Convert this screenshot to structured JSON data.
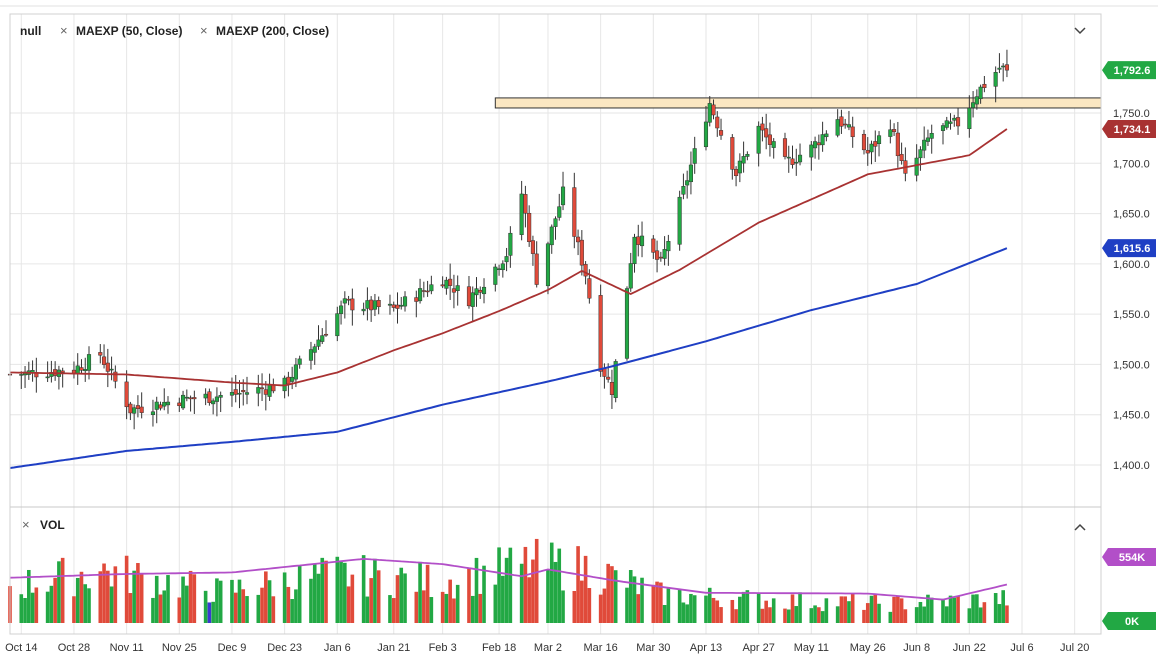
{
  "legend": {
    "symbol": "null",
    "ma50_label": "MAEXP (50, Close)",
    "ma200_label": "MAEXP (200, Close)",
    "remove_glyph": "×"
  },
  "volume_pane": {
    "title": "VOL",
    "collapse_glyph": "^"
  },
  "colors": {
    "up": "#22a844",
    "down": "#e04a3a",
    "ma50": "#a83232",
    "ma200": "#1f3fc4",
    "vol_ma": "#b24fc8",
    "zone_fill": "#fbe7c2",
    "zone_stroke": "#333333",
    "grid": "#e6e6e6",
    "special_bar": "#3a3ad0"
  },
  "chart_data": [
    {
      "type": "candlestick",
      "title": "",
      "xlabel": "",
      "ylabel": "",
      "ylim": [
        1350,
        1820
      ],
      "y_ticks": [
        1400,
        1450,
        1500,
        1550,
        1600,
        1650,
        1700,
        1750
      ],
      "y_tick_labels": [
        "1,400.0",
        "1,450.0",
        "1,500.0",
        "1,550.0",
        "1,600.0",
        "1,650.0",
        "1,700.0",
        "1,750.0"
      ],
      "x_range": [
        "2019-10-11",
        "2020-07-27"
      ],
      "x_ticks": [
        "2019-10-14",
        "2019-10-28",
        "2019-11-11",
        "2019-11-25",
        "2019-12-09",
        "2019-12-23",
        "2020-01-06",
        "2020-01-21",
        "2020-02-03",
        "2020-02-18",
        "2020-03-02",
        "2020-03-16",
        "2020-03-30",
        "2020-04-13",
        "2020-04-27",
        "2020-05-11",
        "2020-05-26",
        "2020-06-08",
        "2020-06-22",
        "2020-07-06",
        "2020-07-20"
      ],
      "x_tick_labels": [
        "Oct 14",
        "Oct 28",
        "Nov 11",
        "Nov 25",
        "Dec 9",
        "Dec 23",
        "Jan 6",
        "Jan 21",
        "Feb 3",
        "Feb 18",
        "Mar 2",
        "Mar 16",
        "Mar 30",
        "Apr 13",
        "Apr 27",
        "May 11",
        "May 26",
        "Jun 8",
        "Jun 22",
        "Jul 6",
        "Jul 20"
      ],
      "grid": true,
      "ohlc_keyframes": [
        {
          "date": "2019-10-11",
          "close": 1490
        },
        {
          "date": "2019-10-28",
          "close": 1495
        },
        {
          "date": "2019-11-04",
          "close": 1510
        },
        {
          "date": "2019-11-12",
          "close": 1455
        },
        {
          "date": "2019-11-25",
          "close": 1465
        },
        {
          "date": "2019-12-09",
          "close": 1470
        },
        {
          "date": "2019-12-23",
          "close": 1480
        },
        {
          "date": "2019-12-31",
          "close": 1520
        },
        {
          "date": "2020-01-08",
          "close": 1560
        },
        {
          "date": "2020-01-21",
          "close": 1555
        },
        {
          "date": "2020-02-03",
          "close": 1585
        },
        {
          "date": "2020-02-10",
          "close": 1565
        },
        {
          "date": "2020-02-20",
          "close": 1610
        },
        {
          "date": "2020-02-24",
          "close": 1670
        },
        {
          "date": "2020-02-28",
          "close": 1585
        },
        {
          "date": "2020-03-06",
          "close": 1670
        },
        {
          "date": "2020-03-12",
          "close": 1590
        },
        {
          "date": "2020-03-16",
          "close": 1500
        },
        {
          "date": "2020-03-19",
          "close": 1475
        },
        {
          "date": "2020-03-25",
          "close": 1630
        },
        {
          "date": "2020-04-01",
          "close": 1600
        },
        {
          "date": "2020-04-06",
          "close": 1660
        },
        {
          "date": "2020-04-14",
          "close": 1760
        },
        {
          "date": "2020-04-21",
          "close": 1690
        },
        {
          "date": "2020-04-27",
          "close": 1735
        },
        {
          "date": "2020-05-04",
          "close": 1700
        },
        {
          "date": "2020-05-11",
          "close": 1715
        },
        {
          "date": "2020-05-18",
          "close": 1745
        },
        {
          "date": "2020-05-26",
          "close": 1710
        },
        {
          "date": "2020-06-01",
          "close": 1740
        },
        {
          "date": "2020-06-05",
          "close": 1685
        },
        {
          "date": "2020-06-12",
          "close": 1730
        },
        {
          "date": "2020-06-19",
          "close": 1740
        },
        {
          "date": "2020-06-24",
          "close": 1770
        },
        {
          "date": "2020-06-30",
          "close": 1795
        },
        {
          "date": "2020-07-02",
          "close": 1792.6
        }
      ],
      "ma50_keyframes": [
        {
          "date": "2019-10-11",
          "value": 1492
        },
        {
          "date": "2019-11-11",
          "value": 1490
        },
        {
          "date": "2019-12-09",
          "value": 1482
        },
        {
          "date": "2019-12-23",
          "value": 1479
        },
        {
          "date": "2020-01-06",
          "value": 1492
        },
        {
          "date": "2020-01-21",
          "value": 1514
        },
        {
          "date": "2020-02-03",
          "value": 1531
        },
        {
          "date": "2020-02-18",
          "value": 1553
        },
        {
          "date": "2020-03-02",
          "value": 1574
        },
        {
          "date": "2020-03-11",
          "value": 1593
        },
        {
          "date": "2020-03-24",
          "value": 1570
        },
        {
          "date": "2020-04-06",
          "value": 1594
        },
        {
          "date": "2020-04-27",
          "value": 1641
        },
        {
          "date": "2020-05-26",
          "value": 1689
        },
        {
          "date": "2020-06-22",
          "value": 1708
        },
        {
          "date": "2020-07-02",
          "value": 1734.1
        }
      ],
      "ma200_keyframes": [
        {
          "date": "2019-10-11",
          "value": 1397
        },
        {
          "date": "2019-11-11",
          "value": 1414
        },
        {
          "date": "2019-12-09",
          "value": 1423
        },
        {
          "date": "2020-01-06",
          "value": 1433
        },
        {
          "date": "2020-02-03",
          "value": 1460
        },
        {
          "date": "2020-03-02",
          "value": 1483
        },
        {
          "date": "2020-03-19",
          "value": 1498
        },
        {
          "date": "2020-04-13",
          "value": 1523
        },
        {
          "date": "2020-05-11",
          "value": 1554
        },
        {
          "date": "2020-06-08",
          "value": 1580
        },
        {
          "date": "2020-07-02",
          "value": 1615.6
        }
      ],
      "resistance_zone": {
        "from": "2020-02-17",
        "to": "2020-07-27",
        "low": 1755,
        "high": 1765
      },
      "last_values": [
        {
          "label": "1,792.6",
          "value": 1792.6,
          "color": "#22a844"
        },
        {
          "label": "1,734.1",
          "value": 1734.1,
          "color": "#a83232"
        },
        {
          "label": "1,615.6",
          "value": 1615.6,
          "color": "#1f3fc4"
        }
      ]
    },
    {
      "type": "bar",
      "title": "",
      "series_name": "VOL",
      "ylim": [
        0,
        1100
      ],
      "volume_keyframes": [
        {
          "date": "2019-10-11",
          "value": 480
        },
        {
          "date": "2019-11-04",
          "value": 700
        },
        {
          "date": "2019-12-06",
          "value": 420
        },
        {
          "date": "2020-01-06",
          "value": 650
        },
        {
          "date": "2020-02-03",
          "value": 550
        },
        {
          "date": "2020-02-26",
          "value": 780
        },
        {
          "date": "2020-03-13",
          "value": 720
        },
        {
          "date": "2020-04-01",
          "value": 380
        },
        {
          "date": "2020-05-01",
          "value": 300
        },
        {
          "date": "2020-06-01",
          "value": 260
        },
        {
          "date": "2020-07-02",
          "value": 320
        }
      ],
      "volume_ma_keyframes": [
        {
          "date": "2019-10-11",
          "value": 600
        },
        {
          "date": "2019-11-11",
          "value": 650
        },
        {
          "date": "2019-12-09",
          "value": 670
        },
        {
          "date": "2020-01-13",
          "value": 850
        },
        {
          "date": "2020-02-03",
          "value": 780
        },
        {
          "date": "2020-02-24",
          "value": 620
        },
        {
          "date": "2020-03-02",
          "value": 710
        },
        {
          "date": "2020-03-20",
          "value": 560
        },
        {
          "date": "2020-04-13",
          "value": 400
        },
        {
          "date": "2020-05-26",
          "value": 390
        },
        {
          "date": "2020-06-15",
          "value": 310
        },
        {
          "date": "2020-07-02",
          "value": 510
        }
      ],
      "axis_labels": [
        {
          "label": "554K",
          "value": 554,
          "color": "#b24fc8"
        },
        {
          "label": "0K",
          "value": 0,
          "color": "#22a844"
        }
      ]
    }
  ]
}
